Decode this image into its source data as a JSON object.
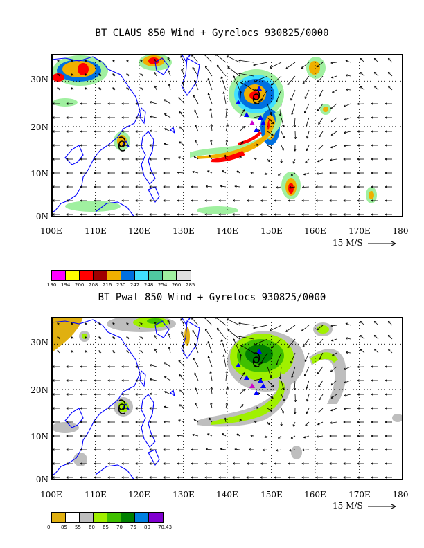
{
  "top": {
    "title": "BT CLAUS 850 Wind + Gyrelocs 930825/0000",
    "colorbar": {
      "labels": [
        "190",
        "194",
        "200",
        "208",
        "216",
        "230",
        "242",
        "248",
        "254",
        "260",
        "285"
      ],
      "colors": [
        "#ff00ff",
        "#ffff00",
        "#ff0000",
        "#a00000",
        "#f0b000",
        "#0070e0",
        "#40e0ff",
        "#50c8a0",
        "#a0f0a0",
        "#e0e0e0"
      ]
    }
  },
  "bottom": {
    "title": "BT Pwat 850 Wind + Gyrelocs 930825/0000",
    "colorbar": {
      "labels": [
        "0",
        "85",
        "55",
        "60",
        "65",
        "70",
        "75",
        "80",
        "70.43"
      ],
      "colors": [
        "#e0b010",
        "#ffffff",
        "#bebebe",
        "#a0f000",
        "#40c000",
        "#008000",
        "#0080e0",
        "#8000d0"
      ]
    }
  },
  "axes": {
    "lon_labels": [
      "100E",
      "110E",
      "120E",
      "130E",
      "140E",
      "150E",
      "160E",
      "170E",
      "180"
    ],
    "lat_labels": [
      "30N",
      "20N",
      "10N",
      "0N"
    ],
    "lon_range": [
      100,
      180
    ],
    "lat_range": [
      0,
      36
    ]
  },
  "reference_vector": "15 M/S",
  "colors": {
    "coast": "#0000ff",
    "gyre_marker_blue": "#0000ff",
    "gyre_marker_magenta": "#cc00cc"
  }
}
